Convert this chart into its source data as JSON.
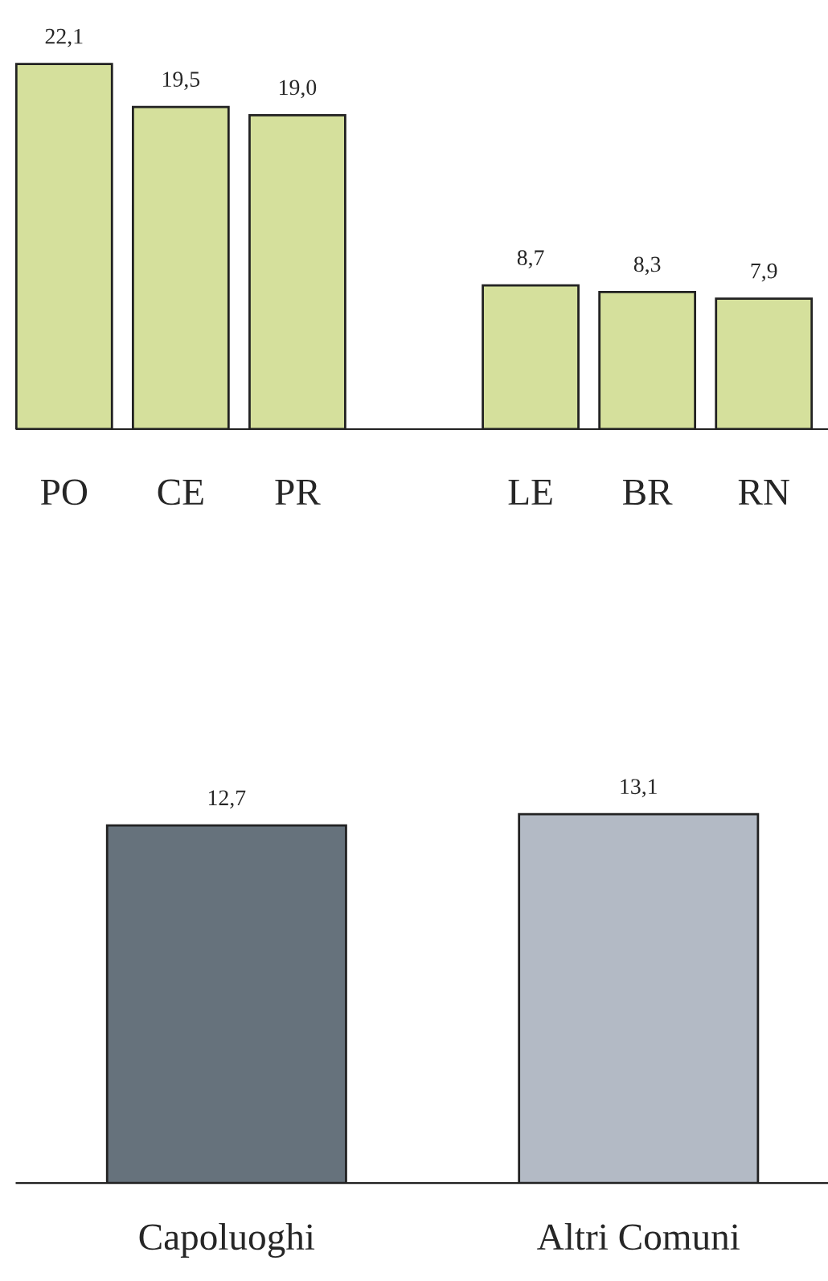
{
  "chart_data": [
    {
      "type": "bar",
      "categories": [
        "PO",
        "CE",
        "PR",
        null,
        "LE",
        "BR",
        "RN"
      ],
      "values": [
        22.1,
        19.5,
        19.0,
        null,
        8.7,
        8.3,
        7.9
      ],
      "value_labels": [
        "22,1",
        "19,5",
        "19,0",
        null,
        "8,7",
        "8,3",
        "7,9"
      ],
      "color": "#d5e09c",
      "grid": false,
      "legend": false
    },
    {
      "type": "bar",
      "categories": [
        "Capoluoghi",
        "Altri Comuni"
      ],
      "values": [
        12.7,
        13.1
      ],
      "value_labels": [
        "12,7",
        "13,1"
      ],
      "colors": [
        "#66727c",
        "#b3bac5"
      ],
      "grid": false,
      "legend": false
    }
  ]
}
